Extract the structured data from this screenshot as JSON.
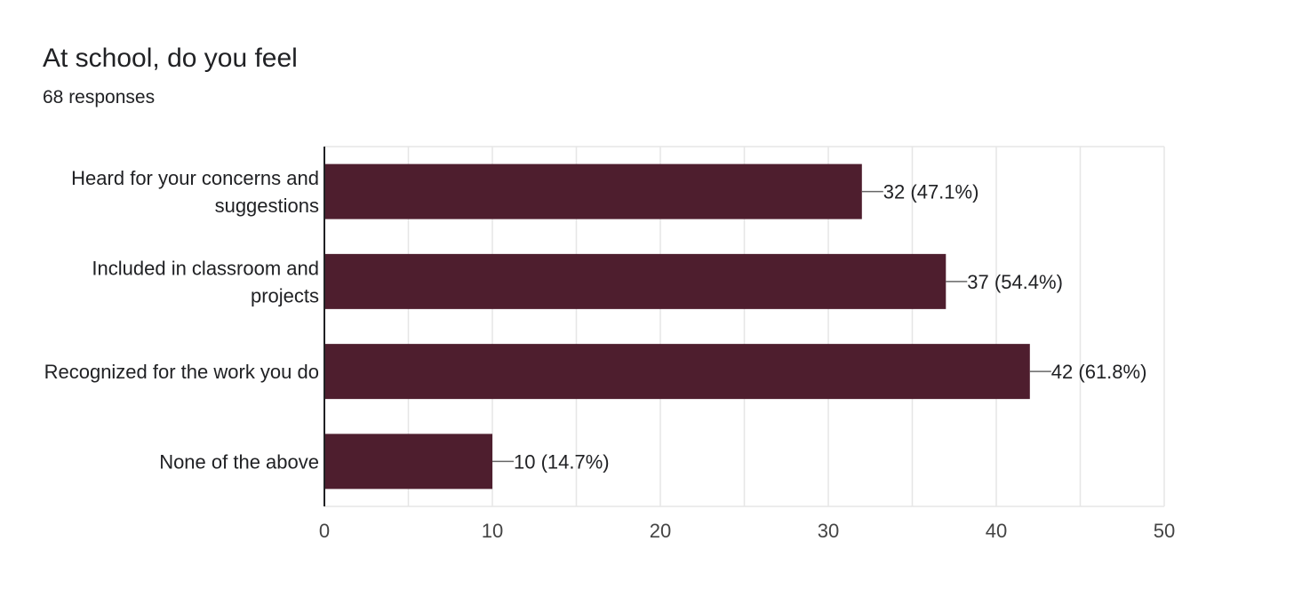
{
  "header": {
    "title": "At school, do you feel",
    "subtitle": "68 responses"
  },
  "colors": {
    "bar": "#4e1e2e",
    "grid": "#e6e6e6",
    "axis": "#202124",
    "leader": "#666666",
    "text": "#202124",
    "tick_text": "#444444"
  },
  "chart_data": {
    "type": "bar",
    "orientation": "horizontal",
    "title": "At school, do you feel",
    "subtitle": "68 responses",
    "categories": [
      [
        "Heard for your concerns and",
        "suggestions"
      ],
      [
        "Included in classroom and",
        "projects"
      ],
      [
        "Recognized for the work you do"
      ],
      [
        "None of the above"
      ]
    ],
    "values": [
      32,
      37,
      42,
      10
    ],
    "data_labels": [
      "32 (47.1%)",
      "37 (54.4%)",
      "42 (61.8%)",
      "10 (14.7%)"
    ],
    "xlim": [
      0,
      50
    ],
    "xticks": [
      0,
      10,
      20,
      30,
      40,
      50
    ],
    "grid": true,
    "legend": "none"
  }
}
